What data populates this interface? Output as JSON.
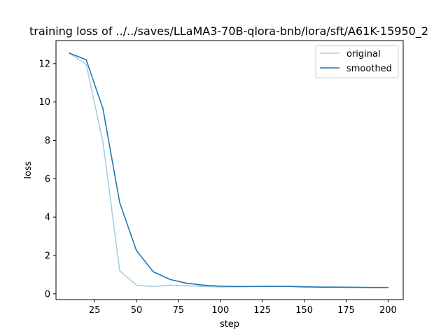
{
  "chart_data": {
    "type": "line",
    "title": "training loss of ../../saves/LLaMA3-70B-qlora-bnb/lora/sft/A61K-15950_2",
    "xlabel": "step",
    "ylabel": "loss",
    "xlim": [
      2,
      209
    ],
    "ylim": [
      -0.3,
      13.2
    ],
    "xticks": [
      25,
      50,
      75,
      100,
      125,
      150,
      175,
      200
    ],
    "yticks": [
      0,
      2,
      4,
      6,
      8,
      10,
      12
    ],
    "legend_position": "upper right",
    "x": [
      10,
      20,
      30,
      40,
      50,
      60,
      70,
      80,
      90,
      100,
      110,
      120,
      130,
      140,
      150,
      160,
      170,
      180,
      190,
      200
    ],
    "series": [
      {
        "name": "original",
        "color": "#a6cee3",
        "values": [
          12.55,
          11.95,
          7.9,
          1.2,
          0.45,
          0.38,
          0.45,
          0.42,
          0.38,
          0.36,
          0.37,
          0.38,
          0.4,
          0.38,
          0.35,
          0.34,
          0.35,
          0.33,
          0.33,
          0.33
        ]
      },
      {
        "name": "smoothed",
        "color": "#1f78b4",
        "values": [
          12.55,
          12.2,
          9.65,
          4.75,
          2.25,
          1.15,
          0.75,
          0.55,
          0.45,
          0.4,
          0.38,
          0.38,
          0.39,
          0.39,
          0.37,
          0.35,
          0.35,
          0.34,
          0.33,
          0.33
        ]
      }
    ]
  }
}
